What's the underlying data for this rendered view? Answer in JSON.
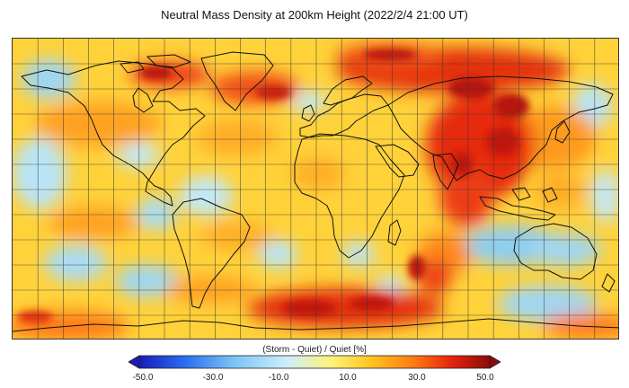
{
  "title": "Neutral Mass Density at 200km Height (2022/2/4 21:00 UT)",
  "colorbar": {
    "label": "(Storm - Quiet) / Quiet [%]",
    "ticks": [
      "-50.0",
      "-30.0",
      "-10.0",
      "10.0",
      "30.0",
      "50.0"
    ],
    "stops": [
      "#1a1ab8",
      "#2a6ef0",
      "#7cc4f4",
      "#cdeefa",
      "#fff27a",
      "#ffc41f",
      "#ff7d14",
      "#e8220e",
      "#8a0d0a"
    ]
  },
  "map": {
    "projection": "cylindrical equidistant",
    "grid": "15-degree latitude/longitude grid",
    "coastlines": "black outlines"
  }
}
